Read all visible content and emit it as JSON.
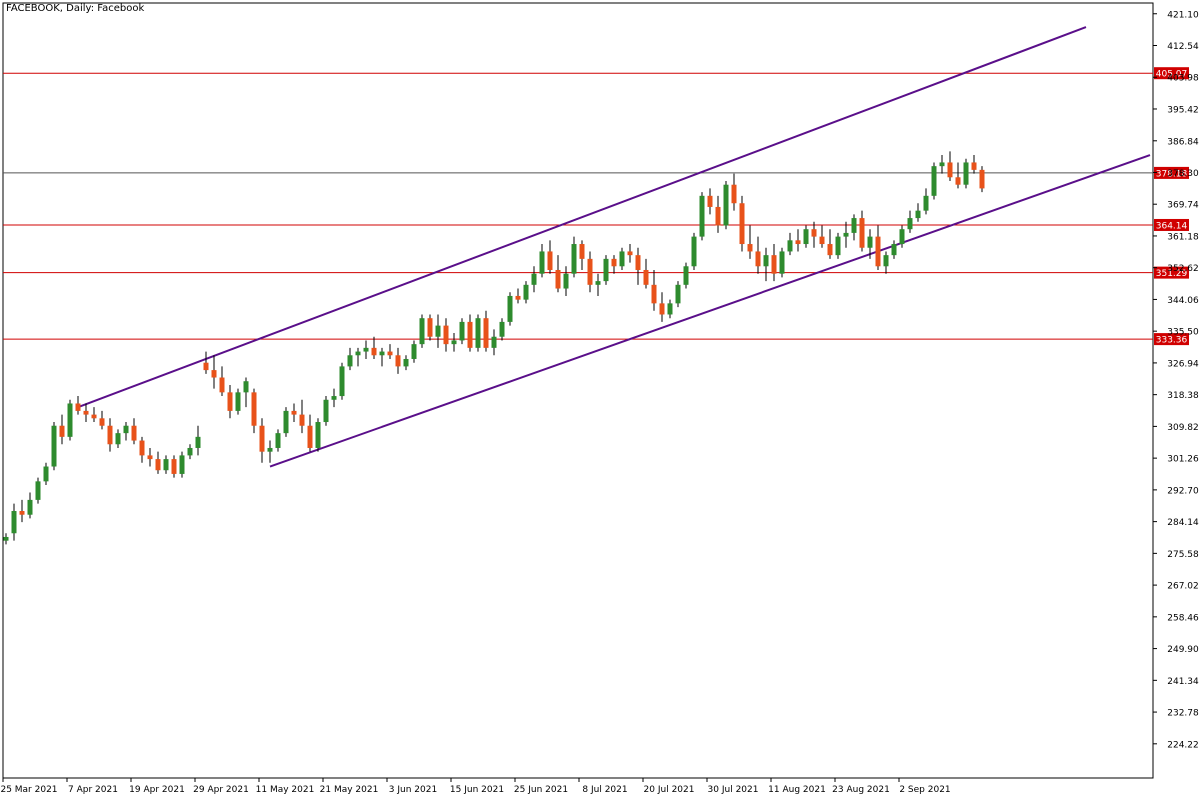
{
  "chart_data": {
    "type": "candlestick",
    "title": "FACEBOOK, Daily:  Facebook",
    "ylim": [
      215.0,
      424.0
    ],
    "y_ticks": [
      "421.10",
      "412.54",
      "403.98",
      "395.42",
      "386.84",
      "378.30",
      "369.74",
      "361.18",
      "352.62",
      "344.06",
      "335.50",
      "326.94",
      "318.38",
      "309.82",
      "301.26",
      "292.70",
      "284.14",
      "275.58",
      "267.02",
      "258.46",
      "249.90",
      "241.34",
      "232.78",
      "224.22"
    ],
    "x_ticks": [
      {
        "i": 0,
        "label": "25 Mar 2021"
      },
      {
        "i": 8,
        "label": "7 Apr 2021"
      },
      {
        "i": 16,
        "label": "19 Apr 2021"
      },
      {
        "i": 24,
        "label": "29 Apr 2021"
      },
      {
        "i": 32,
        "label": "11 May 2021"
      },
      {
        "i": 40,
        "label": "21 May 2021"
      },
      {
        "i": 48,
        "label": "3 Jun 2021"
      },
      {
        "i": 56,
        "label": "15 Jun 2021"
      },
      {
        "i": 64,
        "label": "25 Jun 2021"
      },
      {
        "i": 72,
        "label": "8 Jul 2021"
      },
      {
        "i": 80,
        "label": "20 Jul 2021"
      },
      {
        "i": 88,
        "label": "30 Jul 2021"
      },
      {
        "i": 96,
        "label": "11 Aug 2021"
      },
      {
        "i": 104,
        "label": "23 Aug 2021"
      },
      {
        "i": 112,
        "label": "2 Sep 2021"
      }
    ],
    "candles": [
      [
        279,
        281,
        278,
        280
      ],
      [
        281,
        289,
        279,
        287
      ],
      [
        287,
        290,
        284,
        286
      ],
      [
        286,
        292,
        285,
        290
      ],
      [
        290,
        296,
        289,
        295
      ],
      [
        295,
        300,
        294,
        299
      ],
      [
        299,
        311,
        298,
        310
      ],
      [
        310,
        313,
        305,
        307
      ],
      [
        307,
        317,
        306,
        316
      ],
      [
        316,
        318,
        313,
        314
      ],
      [
        314,
        316,
        311,
        313
      ],
      [
        313,
        315,
        311,
        312
      ],
      [
        312,
        314,
        309,
        310
      ],
      [
        310,
        312,
        303,
        305
      ],
      [
        305,
        309,
        304,
        308
      ],
      [
        308,
        311,
        306,
        310
      ],
      [
        310,
        312,
        305,
        306
      ],
      [
        306,
        307,
        300,
        302
      ],
      [
        302,
        304,
        299,
        301
      ],
      [
        301,
        303,
        297,
        298
      ],
      [
        298,
        302,
        297,
        301
      ],
      [
        301,
        302,
        296,
        297
      ],
      [
        297,
        303,
        296,
        302
      ],
      [
        302,
        305,
        301,
        304
      ],
      [
        304,
        310,
        302,
        307
      ],
      [
        327,
        330,
        324,
        325
      ],
      [
        325,
        329,
        320,
        323
      ],
      [
        323,
        326,
        318,
        319
      ],
      [
        319,
        321,
        312,
        314
      ],
      [
        314,
        320,
        313,
        319
      ],
      [
        319,
        323,
        315,
        322
      ],
      [
        319,
        320,
        308,
        310
      ],
      [
        310,
        312,
        300,
        303
      ],
      [
        303,
        306,
        300,
        304
      ],
      [
        304,
        309,
        303,
        308
      ],
      [
        308,
        315,
        307,
        314
      ],
      [
        314,
        316,
        311,
        313
      ],
      [
        313,
        317,
        308,
        310
      ],
      [
        310,
        313,
        303,
        304
      ],
      [
        304,
        312,
        303,
        311
      ],
      [
        311,
        318,
        310,
        317
      ],
      [
        317,
        320,
        315,
        318
      ],
      [
        318,
        327,
        317,
        326
      ],
      [
        326,
        331,
        325,
        329
      ],
      [
        329,
        331,
        326,
        330
      ],
      [
        330,
        333,
        328,
        331
      ],
      [
        331,
        334,
        328,
        329
      ],
      [
        329,
        331,
        326,
        330
      ],
      [
        330,
        332,
        328,
        329
      ],
      [
        329,
        331,
        324,
        326
      ],
      [
        326,
        329,
        325,
        328
      ],
      [
        328,
        333,
        327,
        332
      ],
      [
        332,
        340,
        331,
        339
      ],
      [
        339,
        340,
        333,
        334
      ],
      [
        334,
        340,
        331,
        337
      ],
      [
        337,
        339,
        330,
        332
      ],
      [
        332,
        335,
        330,
        333
      ],
      [
        333,
        339,
        332,
        338
      ],
      [
        338,
        340,
        330,
        331
      ],
      [
        331,
        340,
        330,
        339
      ],
      [
        339,
        341,
        330,
        331
      ],
      [
        331,
        336,
        329,
        334
      ],
      [
        334,
        339,
        333,
        338
      ],
      [
        338,
        346,
        337,
        345
      ],
      [
        345,
        347,
        343,
        344
      ],
      [
        344,
        349,
        343,
        348
      ],
      [
        348,
        353,
        346,
        351
      ],
      [
        351,
        359,
        350,
        357
      ],
      [
        357,
        360,
        351,
        352
      ],
      [
        352,
        356,
        346,
        347
      ],
      [
        347,
        353,
        345,
        351
      ],
      [
        351,
        361,
        350,
        359
      ],
      [
        359,
        360,
        352,
        355
      ],
      [
        355,
        357,
        346,
        348
      ],
      [
        348,
        351,
        345,
        349
      ],
      [
        349,
        356,
        348,
        355
      ],
      [
        355,
        356,
        351,
        353
      ],
      [
        353,
        358,
        352,
        357
      ],
      [
        357,
        359,
        354,
        356
      ],
      [
        356,
        358,
        348,
        352
      ],
      [
        352,
        355,
        347,
        348
      ],
      [
        348,
        352,
        341,
        343
      ],
      [
        343,
        346,
        338,
        340
      ],
      [
        340,
        344,
        339,
        343
      ],
      [
        343,
        349,
        342,
        348
      ],
      [
        348,
        354,
        347,
        353
      ],
      [
        353,
        362,
        352,
        361
      ],
      [
        361,
        373,
        360,
        372
      ],
      [
        372,
        374,
        367,
        369
      ],
      [
        369,
        372,
        362,
        364
      ],
      [
        364,
        376,
        363,
        375
      ],
      [
        375,
        378,
        368,
        370
      ],
      [
        370,
        372,
        357,
        359
      ],
      [
        359,
        364,
        355,
        357
      ],
      [
        357,
        361,
        351,
        353
      ],
      [
        353,
        358,
        349,
        356
      ],
      [
        356,
        359,
        349,
        351
      ],
      [
        351,
        358,
        350,
        357
      ],
      [
        357,
        362,
        356,
        360
      ],
      [
        360,
        363,
        357,
        359
      ],
      [
        359,
        364,
        358,
        363
      ],
      [
        363,
        365,
        358,
        361
      ],
      [
        361,
        364,
        358,
        359
      ],
      [
        359,
        363,
        355,
        356
      ],
      [
        356,
        362,
        355,
        361
      ],
      [
        361,
        365,
        358,
        362
      ],
      [
        362,
        367,
        360,
        366
      ],
      [
        366,
        368,
        357,
        358
      ],
      [
        358,
        363,
        355,
        361
      ],
      [
        361,
        364,
        352,
        353
      ],
      [
        353,
        357,
        351,
        356
      ],
      [
        356,
        360,
        355,
        359
      ],
      [
        359,
        364,
        358,
        363
      ],
      [
        363,
        368,
        362,
        366
      ],
      [
        366,
        370,
        365,
        368
      ],
      [
        368,
        374,
        367,
        372
      ],
      [
        372,
        381,
        371,
        380
      ],
      [
        380,
        383,
        378,
        381
      ],
      [
        381,
        384,
        376,
        377
      ],
      [
        377,
        381,
        374,
        375
      ],
      [
        375,
        382,
        374,
        381
      ],
      [
        381,
        383,
        378,
        379
      ],
      [
        379,
        380,
        373,
        374
      ]
    ],
    "levels": [
      {
        "value": 405.07,
        "label": "405.07",
        "color": "#d00000"
      },
      {
        "value": 378.18,
        "label": "378.18",
        "color": "#d00000",
        "line_color": "#555555"
      },
      {
        "value": 364.14,
        "label": "364.14",
        "color": "#d00000"
      },
      {
        "value": 351.29,
        "label": "351.29",
        "color": "#d00000"
      },
      {
        "value": 333.36,
        "label": "333.36",
        "color": "#d00000"
      }
    ],
    "channel": {
      "color": "#5a0f8a",
      "upper": [
        [
          9,
          315.0
        ],
        [
          135,
          417.5
        ]
      ],
      "lower": [
        [
          33,
          299.0
        ],
        [
          143,
          383.0
        ]
      ]
    },
    "bull_color": "#2e8b2e",
    "bear_color": "#e8521a",
    "wick_color": "#000000"
  }
}
